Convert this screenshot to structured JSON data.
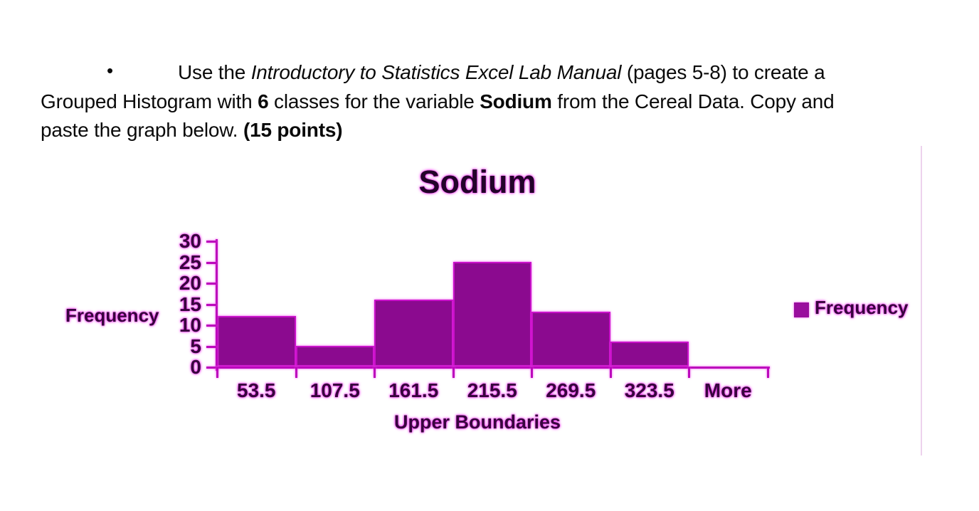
{
  "instructions": {
    "bullet": "•",
    "line1": {
      "pre": "Use the ",
      "italic": "Introductory to Statistics Excel Lab Manual",
      "post": " (pages 5-8) to create a"
    },
    "line2": {
      "pre": "Grouped Histogram with ",
      "bold1": "6",
      "mid": " classes for the variable ",
      "bold2": "Sodium",
      "post": " from the Cereal Data. Copy and"
    },
    "line3": {
      "pre": "paste the graph below. ",
      "bold": "(15 points)"
    }
  },
  "chart": {
    "title": "Sodium",
    "y_axis_title": "Frequency",
    "x_axis_title": "Upper Boundaries",
    "legend": {
      "label": "Frequency"
    },
    "colors": {
      "bar_fill": "#8b0a8f",
      "bar_border": "#c911c9",
      "axis": "#bc09bc",
      "legend_swatch": "#9a0d9e",
      "chart_border": "#edd2ed"
    }
  },
  "chart_data": {
    "type": "bar",
    "title": "Sodium",
    "xlabel": "Upper Boundaries",
    "ylabel": "Frequency",
    "categories": [
      "53.5",
      "107.5",
      "161.5",
      "215.5",
      "269.5",
      "323.5",
      "More"
    ],
    "values": [
      12,
      5,
      16,
      25,
      13,
      6,
      0
    ],
    "yticks": [
      0,
      5,
      10,
      15,
      20,
      25,
      30
    ],
    "ylim": [
      0,
      30
    ],
    "legend": [
      "Frequency"
    ],
    "legend_position": "right",
    "grid": false
  }
}
